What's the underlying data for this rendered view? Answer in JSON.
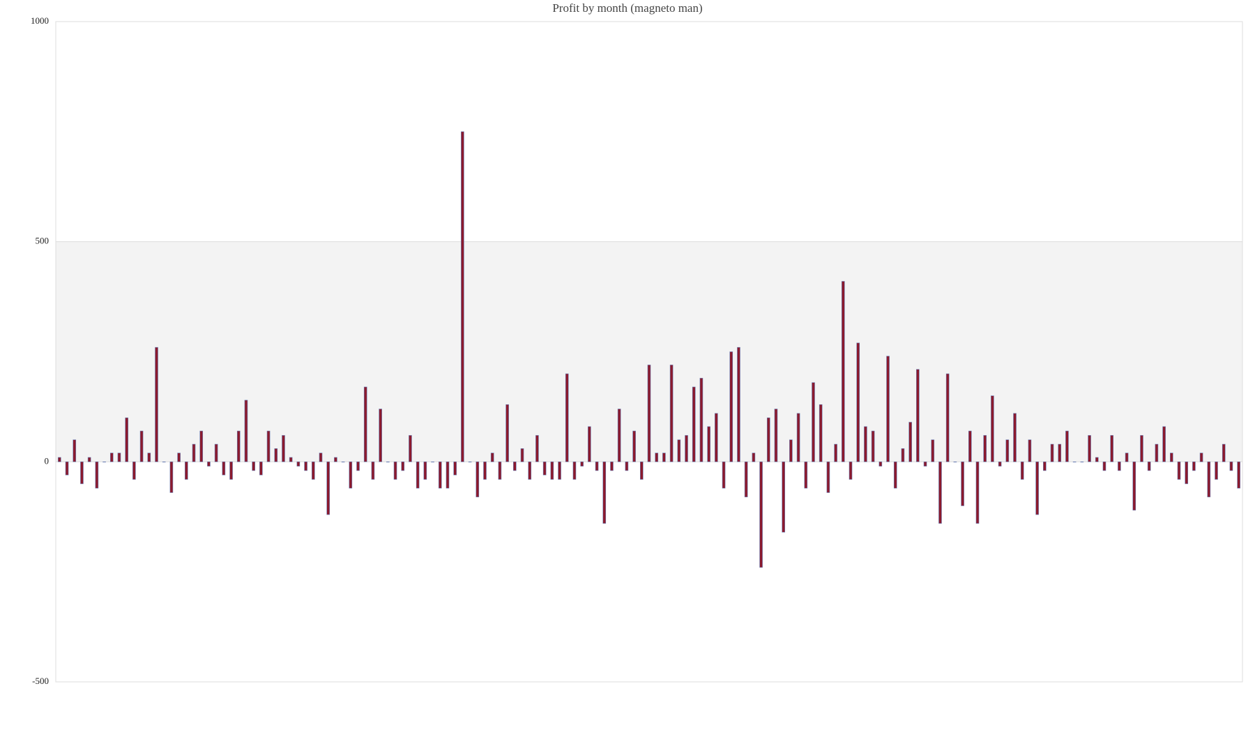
{
  "chart_data": {
    "type": "bar",
    "title": "Profit by month  (magneto man)",
    "categories": [
      null,
      null,
      null,
      null,
      null,
      null,
      null,
      null,
      null,
      null,
      null,
      null,
      null,
      null,
      null,
      null,
      null,
      null,
      null,
      null,
      null,
      null,
      null,
      null,
      null,
      null,
      null,
      null,
      null,
      null,
      null,
      null,
      null,
      null,
      null,
      null,
      null,
      null,
      null,
      null,
      null,
      null,
      null,
      null,
      null,
      null,
      null,
      null,
      null,
      null,
      null,
      null,
      null,
      null,
      null,
      null,
      null,
      null,
      null,
      null,
      null,
      null,
      null,
      null,
      null,
      null,
      null,
      null,
      null,
      null,
      null,
      null,
      null,
      null,
      null,
      null,
      null,
      null,
      null,
      null,
      null,
      null,
      null,
      null,
      null,
      null,
      null,
      null,
      null,
      null,
      null,
      null,
      null,
      null,
      null,
      null,
      null,
      null,
      null,
      null,
      null,
      null,
      null,
      null,
      null,
      null,
      null,
      null,
      null,
      null,
      null,
      null,
      null,
      null,
      null,
      null,
      null,
      null,
      null,
      null,
      null,
      null,
      null,
      null,
      null,
      null,
      null,
      null,
      null,
      null,
      null,
      null,
      null,
      null,
      null,
      null,
      null,
      null,
      null,
      null,
      null,
      null,
      null,
      null,
      null,
      null,
      null,
      null,
      null,
      null,
      null,
      null,
      null,
      null,
      null,
      null,
      null,
      null,
      null
    ],
    "values": [
      10,
      -30,
      50,
      -50,
      10,
      -60,
      0,
      20,
      20,
      100,
      -40,
      70,
      20,
      260,
      0,
      -70,
      20,
      -40,
      40,
      70,
      -10,
      40,
      -30,
      -40,
      70,
      140,
      -20,
      -30,
      70,
      30,
      60,
      10,
      -10,
      -20,
      -40,
      20,
      -120,
      10,
      0,
      -60,
      -20,
      170,
      -40,
      120,
      0,
      -40,
      -20,
      60,
      -60,
      -40,
      0,
      -60,
      -60,
      -30,
      750,
      0,
      -80,
      -40,
      20,
      -40,
      130,
      -20,
      30,
      -40,
      60,
      -30,
      -40,
      -40,
      200,
      -40,
      -10,
      80,
      -20,
      -140,
      -20,
      120,
      -20,
      70,
      -40,
      220,
      20,
      20,
      220,
      50,
      60,
      170,
      190,
      80,
      110,
      -60,
      250,
      260,
      -80,
      20,
      -240,
      100,
      120,
      -160,
      50,
      110,
      -60,
      180,
      130,
      -70,
      40,
      410,
      -40,
      270,
      80,
      70,
      -10,
      240,
      -60,
      30,
      90,
      210,
      -10,
      50,
      -140,
      200,
      0,
      -100,
      70,
      -140,
      60,
      150,
      -10,
      50,
      110,
      -40,
      50,
      -120,
      -20,
      40,
      40,
      70,
      0,
      0,
      60,
      10,
      -20,
      60,
      -20,
      20,
      -110,
      60,
      -20,
      40,
      80,
      20,
      -40,
      -50,
      -20,
      20,
      -80,
      -40,
      40,
      -20,
      -60
    ],
    "color": "#8b1a2e",
    "edge_color": "#6a7fb5",
    "band_color": "#f3f3f3",
    "ylim": [
      -500,
      1000
    ],
    "yticks": [
      -500,
      0,
      500,
      1000
    ]
  }
}
